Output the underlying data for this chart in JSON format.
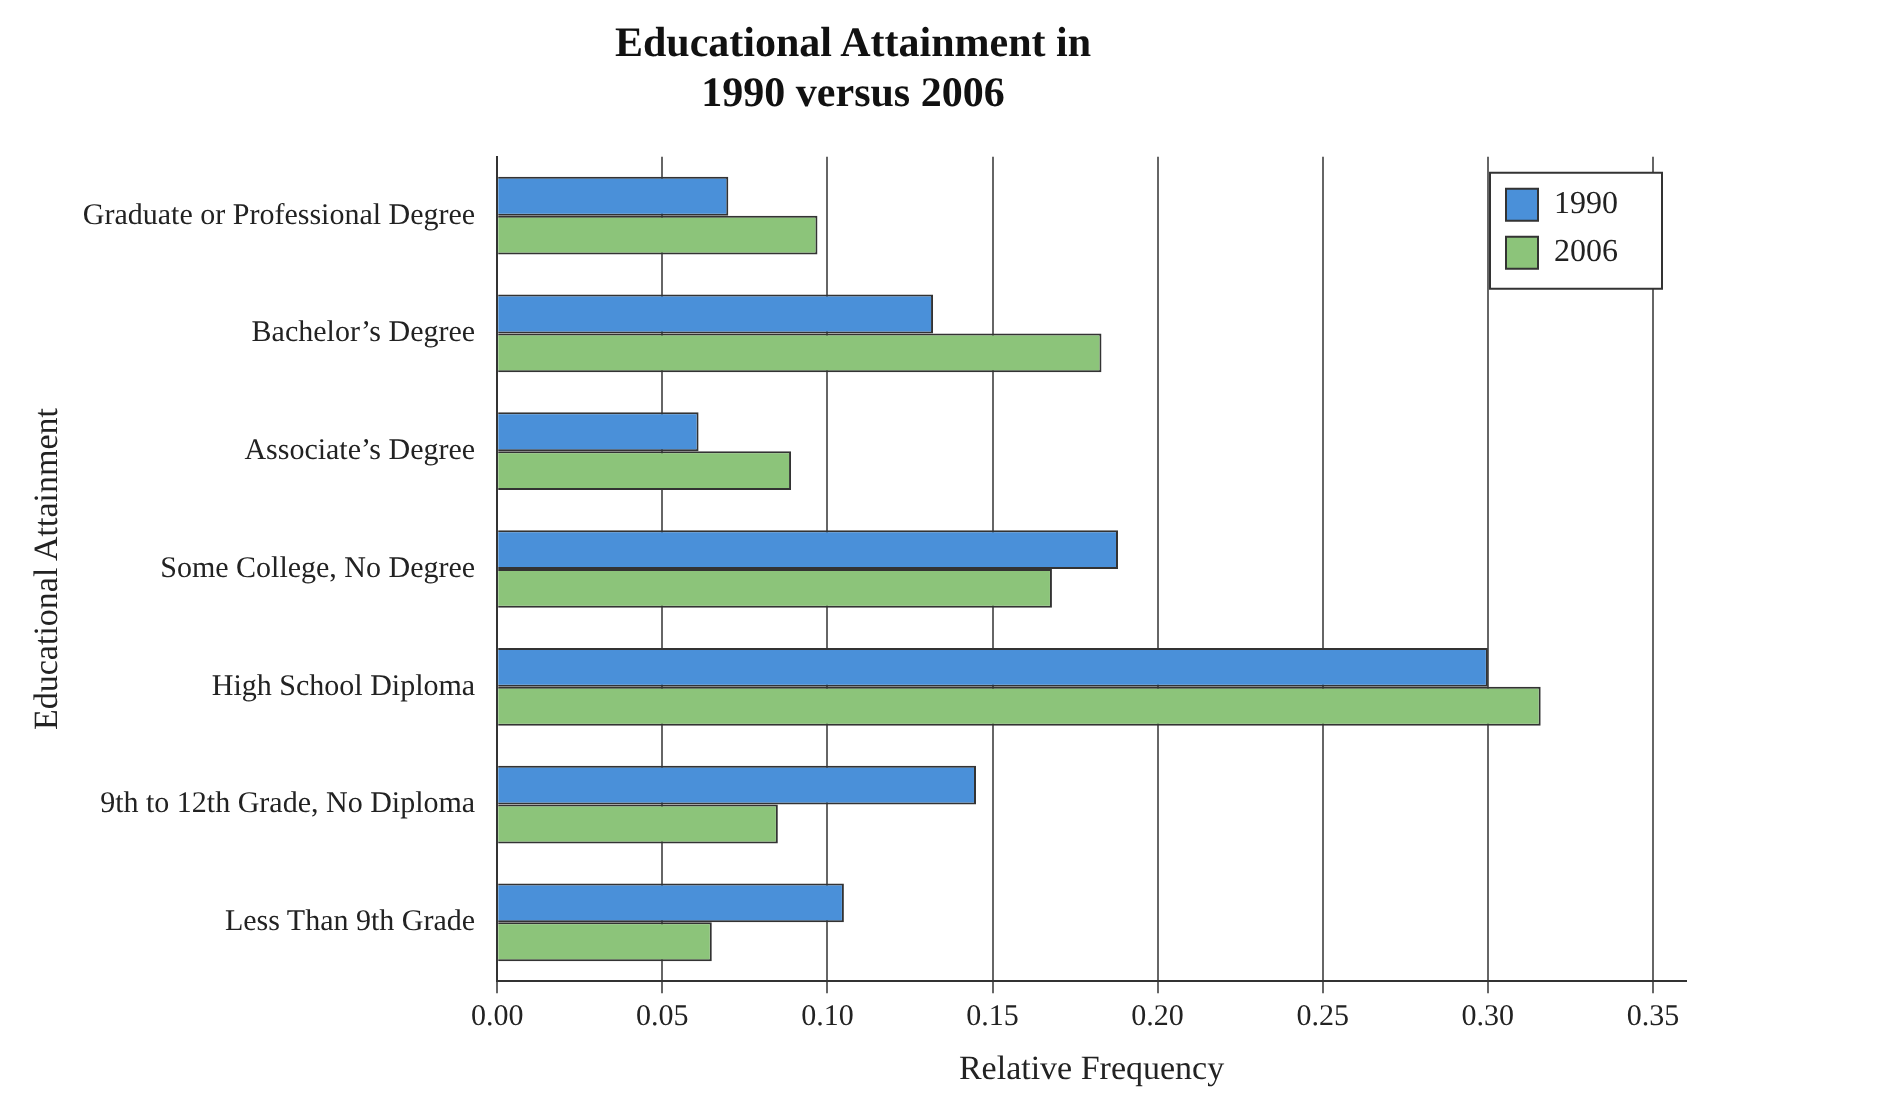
{
  "chart_data": {
    "type": "bar",
    "orientation": "horizontal",
    "title": [
      "Educational Attainment in",
      "1990 versus 2006"
    ],
    "xlabel": "Relative Frequency",
    "ylabel": "Educational Attainment",
    "categories": [
      "Graduate or Professional Degree",
      "Bachelor’s Degree",
      "Associate’s Degree",
      "Some College, No Degree",
      "High School Diploma",
      "9th to 12th Grade, No Diploma",
      "Less Than 9th Grade"
    ],
    "series": [
      {
        "name": "1990",
        "color": "#4a90d9",
        "values": [
          0.07,
          0.132,
          0.061,
          0.188,
          0.3,
          0.145,
          0.105
        ]
      },
      {
        "name": "2006",
        "color": "#8cc47a",
        "values": [
          0.097,
          0.183,
          0.089,
          0.168,
          0.316,
          0.085,
          0.065
        ]
      }
    ],
    "xlim": [
      0,
      0.36
    ],
    "xticks": [
      {
        "value": 0,
        "label": "0.00"
      },
      {
        "value": 0.05,
        "label": "0.05"
      },
      {
        "value": 0.1,
        "label": "0.10"
      },
      {
        "value": 0.15,
        "label": "0.15"
      },
      {
        "value": 0.2,
        "label": "0.20"
      },
      {
        "value": 0.25,
        "label": "0.25"
      },
      {
        "value": 0.3,
        "label": "0.30"
      },
      {
        "value": 0.35,
        "label": "0.35"
      }
    ],
    "grid": "x",
    "legend": "top right"
  }
}
